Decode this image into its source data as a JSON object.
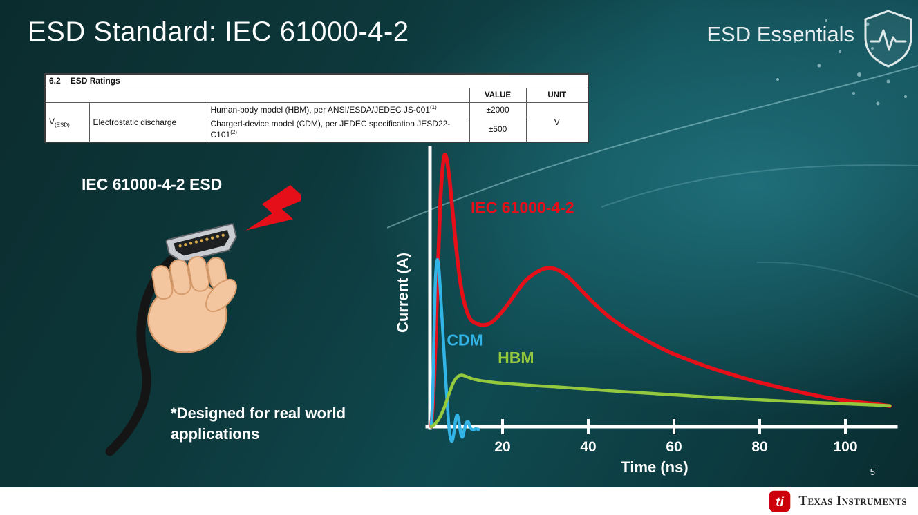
{
  "slide": {
    "title": "ESD Standard: IEC 61000-4-2",
    "brand": "ESD Essentials",
    "page_number": "5",
    "footer_logo_text": "Texas Instruments",
    "footer_logo_abbr": "ti"
  },
  "colors": {
    "background_teal": "#0d3a3d",
    "slide_text": "#ffffff",
    "bolt_red": "#e50f1a"
  },
  "ratings_table": {
    "section_number": "6.2",
    "section_title": "ESD Ratings",
    "headers": {
      "value": "VALUE",
      "unit": "UNIT"
    },
    "symbol": "V",
    "symbol_subscript": "(ESD)",
    "parameter": "Electrostatic discharge",
    "rows": [
      {
        "description": "Human-body model (HBM), per ANSI/ESDA/JEDEC JS-001",
        "superscript": "(1)",
        "value": "±2000"
      },
      {
        "description": "Charged-device model (CDM), per JEDEC specification JESD22-C101",
        "superscript": "(2)",
        "value": "±500"
      }
    ],
    "unit": "V"
  },
  "illustration": {
    "label": "IEC 61000-4-2 ESD",
    "note": "*Designed for real world\napplications"
  },
  "chart_data": {
    "type": "line",
    "title": "",
    "xlabel": "Time (ns)",
    "ylabel": "Current (A)",
    "xlim": [
      0,
      110
    ],
    "ylim": [
      -0.08,
      1.05
    ],
    "x_ticks": [
      20,
      40,
      60,
      80,
      100
    ],
    "y_tick_labels": [],
    "y_scale": "unlabeled (normalized current)",
    "grid": false,
    "legend": "inline-labels",
    "series": [
      {
        "name": "IEC 61000-4-2",
        "color": "#e50f1a",
        "stroke_width": 5.5,
        "label_x": 9.2,
        "label_y": 0.79,
        "points": [
          [
            0,
            0
          ],
          [
            0.7,
            0.18
          ],
          [
            1.4,
            0.52
          ],
          [
            2.1,
            0.83
          ],
          [
            2.8,
            0.98
          ],
          [
            3.4,
            1.0
          ],
          [
            4.2,
            0.92
          ],
          [
            5,
            0.79
          ],
          [
            6,
            0.63
          ],
          [
            7,
            0.51
          ],
          [
            8,
            0.44
          ],
          [
            9,
            0.4
          ],
          [
            10,
            0.385
          ],
          [
            12,
            0.375
          ],
          [
            14,
            0.385
          ],
          [
            16,
            0.415
          ],
          [
            18,
            0.455
          ],
          [
            20,
            0.5
          ],
          [
            22,
            0.54
          ],
          [
            24,
            0.565
          ],
          [
            26,
            0.582
          ],
          [
            28,
            0.586
          ],
          [
            30,
            0.575
          ],
          [
            32,
            0.552
          ],
          [
            34,
            0.52
          ],
          [
            36,
            0.487
          ],
          [
            38,
            0.455
          ],
          [
            41,
            0.412
          ],
          [
            44,
            0.377
          ],
          [
            48,
            0.338
          ],
          [
            52,
            0.303
          ],
          [
            56,
            0.272
          ],
          [
            60,
            0.247
          ],
          [
            65,
            0.218
          ],
          [
            70,
            0.193
          ],
          [
            75,
            0.17
          ],
          [
            80,
            0.15
          ],
          [
            85,
            0.131
          ],
          [
            90,
            0.114
          ],
          [
            95,
            0.1
          ],
          [
            100,
            0.09
          ],
          [
            104,
            0.083
          ],
          [
            107,
            0.076
          ]
        ]
      },
      {
        "name": "CDM",
        "color": "#33b4e6",
        "stroke_width": 4.5,
        "label_x": 3.6,
        "label_y": 0.3,
        "points": [
          [
            0,
            0
          ],
          [
            0.3,
            0.1
          ],
          [
            0.6,
            0.32
          ],
          [
            0.9,
            0.52
          ],
          [
            1.2,
            0.6
          ],
          [
            1.5,
            0.615
          ],
          [
            1.8,
            0.575
          ],
          [
            2.2,
            0.48
          ],
          [
            2.7,
            0.345
          ],
          [
            3.2,
            0.21
          ],
          [
            3.7,
            0.09
          ],
          [
            4.1,
            0.0
          ],
          [
            4.5,
            -0.045
          ],
          [
            4.9,
            -0.052
          ],
          [
            5.3,
            -0.02
          ],
          [
            5.7,
            0.028
          ],
          [
            6.1,
            0.042
          ],
          [
            6.5,
            0.012
          ],
          [
            6.9,
            -0.028
          ],
          [
            7.3,
            -0.038
          ],
          [
            7.7,
            -0.012
          ],
          [
            8.1,
            0.012
          ],
          [
            8.6,
            0.018
          ],
          [
            9.1,
            -0.004
          ],
          [
            9.7,
            -0.012
          ],
          [
            10.3,
            -0.008
          ],
          [
            11,
            -0.01
          ]
        ]
      },
      {
        "name": "HBM",
        "color": "#95c93d",
        "stroke_width": 4.5,
        "label_x": 15.5,
        "label_y": 0.235,
        "points": [
          [
            0,
            0
          ],
          [
            1,
            0.012
          ],
          [
            2,
            0.035
          ],
          [
            3,
            0.07
          ],
          [
            4,
            0.115
          ],
          [
            5,
            0.158
          ],
          [
            6,
            0.183
          ],
          [
            7,
            0.19
          ],
          [
            8,
            0.186
          ],
          [
            9,
            0.18
          ],
          [
            10,
            0.175
          ],
          [
            12,
            0.169
          ],
          [
            15,
            0.163
          ],
          [
            18,
            0.159
          ],
          [
            22,
            0.154
          ],
          [
            26,
            0.15
          ],
          [
            30,
            0.146
          ],
          [
            36,
            0.139
          ],
          [
            42,
            0.132
          ],
          [
            48,
            0.126
          ],
          [
            54,
            0.12
          ],
          [
            60,
            0.114
          ],
          [
            66,
            0.108
          ],
          [
            72,
            0.103
          ],
          [
            78,
            0.098
          ],
          [
            84,
            0.093
          ],
          [
            90,
            0.089
          ],
          [
            96,
            0.085
          ],
          [
            102,
            0.081
          ],
          [
            107,
            0.077
          ]
        ]
      }
    ]
  }
}
